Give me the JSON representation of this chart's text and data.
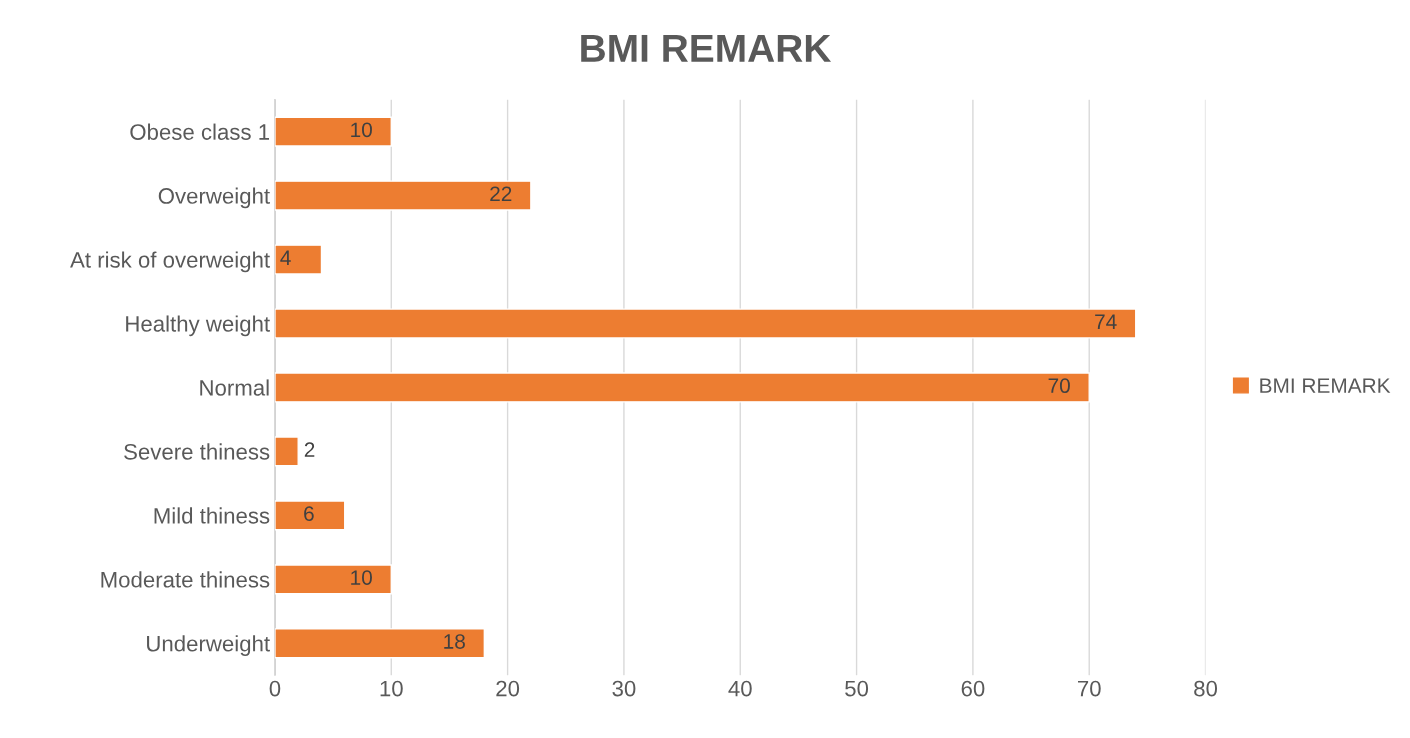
{
  "chart_data": {
    "type": "bar",
    "orientation": "horizontal",
    "title": "BMI REMARK",
    "categories": [
      "Obese class 1",
      "Overweight",
      "At risk of overweight",
      "Healthy weight",
      "Normal",
      "Severe thiness",
      "Mild thiness",
      "Moderate thiness",
      "Underweight"
    ],
    "series": [
      {
        "name": "BMI REMARK",
        "color": "#ed7d31",
        "values": [
          10,
          22,
          4,
          74,
          70,
          2,
          6,
          10,
          18
        ]
      }
    ],
    "xlim": [
      0,
      80
    ],
    "xticks": [
      0,
      10,
      20,
      30,
      40,
      50,
      60,
      70,
      80
    ],
    "grid": "x",
    "legend": "right",
    "data_labels": true
  }
}
